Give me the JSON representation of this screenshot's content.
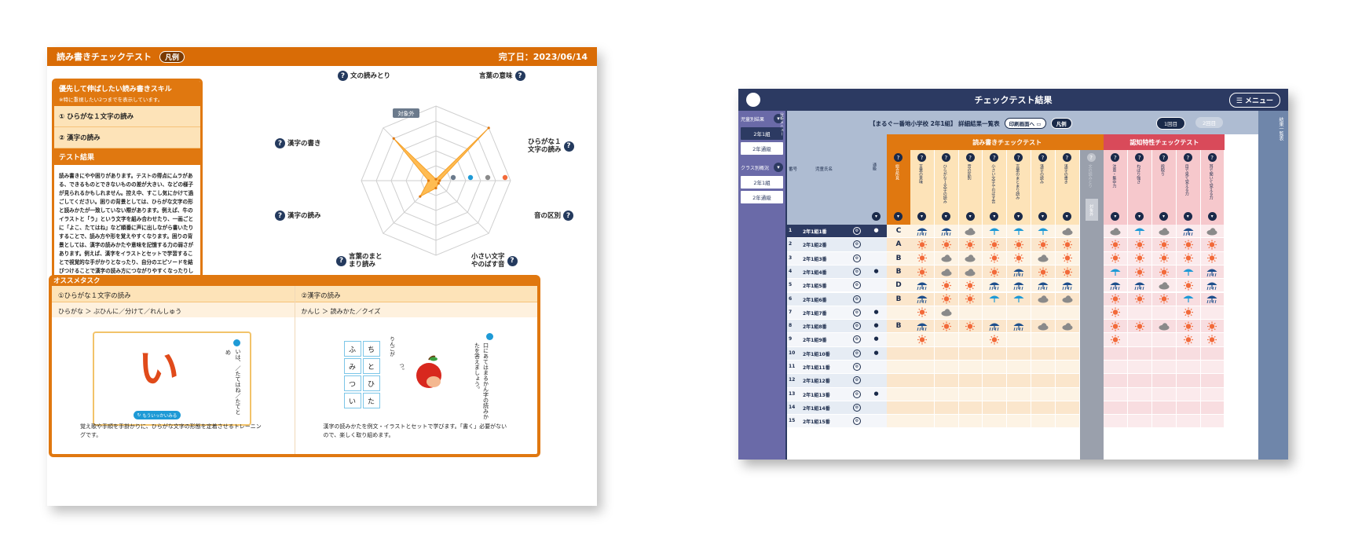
{
  "left": {
    "header": {
      "title": "読み書きチェックテスト",
      "legend_label": "凡例",
      "date": "完了日：2023/06/14"
    },
    "priority": {
      "title": "優先して伸ばしたい読み書きスキル",
      "subtitle": "※特に重視したい2つまでを表示しています。",
      "items": [
        "① ひらがな１文字の読み",
        "② 漢字の読み"
      ]
    },
    "test_result": {
      "title": "テスト結果",
      "body": "読み書きにやや困りがあります。テストの得点にムラがある、できるものとできないものの差が大きい、などの様子が見られるかもしれません。控え中、すこし気にかけて過ごしてください。困りの背景としては、ひらがな文字の形と読みかたが一致していない際があります。例えば、牛のイラストと「う」という文字を組み合わせたり、一画ごとに「よこ、たてはね」など順番に声に出しながら書いたりすることで、読み方や形を覚えやすくなります。困りの背景としては、漢字の読みかたや意味を記憶する力の弱さがあります。例えば、漢字をイラストとセットで学習することで視覚的な手がかりとなったり、自分のエピソードを結びつけることで漢字の読み方につながりやすくなったりします。耳で聞いて覚える力は良好ですが、目で見て覚える力に大きな困りがあることには配慮が必要です。"
    },
    "radar": {
      "axes": [
        "文の読みとり",
        "言葉の意味",
        "ひらがな１文字の読み",
        "音の区別",
        "小さい文字やのばす音",
        "言葉のまとまり読み",
        "漢字の読み",
        "漢字の書き"
      ],
      "labels_lines": [
        [
          "文の読みとり"
        ],
        [
          "言葉の意味"
        ],
        [
          "ひらがな１",
          "文字の読み"
        ],
        [
          "音の区別"
        ],
        [
          "小さい文字",
          "やのばす音"
        ],
        [
          "言葉のまと",
          "まり読み"
        ],
        [
          "漢字の読み"
        ],
        [
          "漢字の書き"
        ]
      ],
      "values": [
        0.0,
        1.0,
        0.05,
        0.05,
        0.1,
        0.3,
        0.1,
        0.8
      ],
      "excluded_label": "対象外",
      "fill": "#ffb84a"
    },
    "tasks": {
      "title": "オススメタスク",
      "columns": [
        {
          "header": "①ひらがな１文字の読み",
          "path": "ひらがな ＞ ぶひんに／分けて／れんしゅう",
          "card_char": "い",
          "card_note": "いは、／たてはね／たてと",
          "card_note_top": "め",
          "button": "もういっかいみる",
          "desc": "覚え歌や手順を手掛かりに、ひらがな文字の形態を定着させるトレーニングです。"
        },
        {
          "header": "②漢字の読み",
          "path": "かんじ ＞ 読みかた／クイズ",
          "grid": [
            "ふ",
            "ち",
            "み",
            "と",
            "つ",
            "ひ",
            "い",
            "た"
          ],
          "hint": "りんごが",
          "hint2": "つ。",
          "vertical": "口にあてはまるかん字の読みかたを答えましょう。",
          "desc": "漢字の読みかたを例文・イラストとセットで学びます。「書く」必要がないので、楽しく取り組めます。"
        }
      ]
    }
  },
  "right": {
    "title": "チェックテスト結果",
    "menu": "☰ メニュー",
    "side": {
      "group1_label": "児童別結果",
      "analysis_label": "分析メニュー",
      "items1": [
        "2年1組",
        "2年通級"
      ],
      "group2_label": "クラス別概況",
      "items2": [
        "2年1組",
        "2年通級"
      ]
    },
    "right_bar_label": "結果一覧表",
    "header_title": "【まるぐー番地小学校 2年1組】 詳細結果一覧表",
    "print_button": "印刷画面へ",
    "legend_button": "凡例",
    "session1": "1回目",
    "session2": "2回目",
    "col_no": "番号",
    "col_name": "児童氏名",
    "col_mark": "通級",
    "col_judge": "総合所見",
    "group_rw": "読み書きチェックテスト",
    "group_cog": "認知特性チェックテスト",
    "rw_cols": [
      "言葉の意味",
      "ひらがな１文字の読み",
      "音の区別",
      "小さい文字やのばす音",
      "言葉のまとまり読み",
      "漢字の読み",
      "漢字の書き"
    ],
    "excluded_col": "文の読みとり",
    "excluded_tag": "対象外",
    "cog_cols": [
      "注意・集中力",
      "ねばり強さ",
      "段取り",
      "目で見て覚える力",
      "耳で聞いて覚える力"
    ],
    "rows": [
      {
        "no": "1",
        "name": "2年1組1番",
        "mark": "●",
        "grade": "C",
        "rw": [
          "ry",
          "ry",
          "c",
          "ra",
          "ra",
          "ra",
          "c"
        ],
        "cog": [
          "c",
          "ra",
          "c",
          "ry",
          "c"
        ]
      },
      {
        "no": "2",
        "name": "2年1組2番",
        "mark": "",
        "grade": "A",
        "rw": [
          "s",
          "s",
          "s",
          "s",
          "s",
          "s",
          "s"
        ],
        "cog": [
          "s",
          "s",
          "s",
          "s",
          "s"
        ]
      },
      {
        "no": "3",
        "name": "2年1組3番",
        "mark": "",
        "grade": "B",
        "rw": [
          "s",
          "c",
          "c",
          "s",
          "s",
          "c",
          "s"
        ],
        "cog": [
          "s",
          "s",
          "s",
          "s",
          "s"
        ]
      },
      {
        "no": "4",
        "name": "2年1組4番",
        "mark": "●",
        "grade": "B",
        "rw": [
          "s",
          "c",
          "c",
          "s",
          "ry",
          "s",
          "s"
        ],
        "cog": [
          "ra",
          "s",
          "s",
          "ra",
          "ry"
        ]
      },
      {
        "no": "5",
        "name": "2年1組5番",
        "mark": "",
        "grade": "D",
        "rw": [
          "ry",
          "s",
          "s",
          "ry",
          "ry",
          "ry",
          "ry"
        ],
        "cog": [
          "ry",
          "ry",
          "c",
          "s",
          "ry"
        ]
      },
      {
        "no": "6",
        "name": "2年1組6番",
        "mark": "",
        "grade": "B",
        "rw": [
          "ry",
          "s",
          "s",
          "ra",
          "ra",
          "c",
          "c"
        ],
        "cog": [
          "s",
          "s",
          "s",
          "ra",
          "ry"
        ]
      },
      {
        "no": "7",
        "name": "2年1組7番",
        "mark": "●",
        "grade": "",
        "rw": [
          "s",
          "c",
          "",
          "",
          "",
          "",
          ""
        ],
        "cog": [
          "s",
          "",
          "",
          "s",
          ""
        ]
      },
      {
        "no": "8",
        "name": "2年1組8番",
        "mark": "●",
        "grade": "B",
        "rw": [
          "ry",
          "s",
          "s",
          "ry",
          "ry",
          "c",
          "c"
        ],
        "cog": [
          "s",
          "s",
          "c",
          "s",
          "s"
        ]
      },
      {
        "no": "9",
        "name": "2年1組9番",
        "mark": "●",
        "grade": "",
        "rw": [
          "s",
          "",
          "",
          "s",
          "",
          "",
          ""
        ],
        "cog": [
          "s",
          "",
          "",
          "s",
          "s"
        ]
      },
      {
        "no": "10",
        "name": "2年1組10番",
        "mark": "●",
        "grade": "",
        "rw": [
          "",
          "",
          "",
          "",
          "",
          "",
          ""
        ],
        "cog": [
          "",
          "",
          "",
          "",
          ""
        ]
      },
      {
        "no": "11",
        "name": "2年1組11番",
        "mark": "",
        "grade": "",
        "rw": [
          "",
          "",
          "",
          "",
          "",
          "",
          ""
        ],
        "cog": [
          "",
          "",
          "",
          "",
          ""
        ]
      },
      {
        "no": "12",
        "name": "2年1組12番",
        "mark": "",
        "grade": "",
        "rw": [
          "",
          "",
          "",
          "",
          "",
          "",
          ""
        ],
        "cog": [
          "",
          "",
          "",
          "",
          ""
        ]
      },
      {
        "no": "13",
        "name": "2年1組13番",
        "mark": "●",
        "grade": "",
        "rw": [
          "",
          "",
          "",
          "",
          "",
          "",
          ""
        ],
        "cog": [
          "",
          "",
          "",
          "",
          ""
        ]
      },
      {
        "no": "14",
        "name": "2年1組14番",
        "mark": "",
        "grade": "",
        "rw": [
          "",
          "",
          "",
          "",
          "",
          "",
          ""
        ],
        "cog": [
          "",
          "",
          "",
          "",
          ""
        ]
      },
      {
        "no": "15",
        "name": "2年1組15番",
        "mark": "",
        "grade": "",
        "rw": [
          "",
          "",
          "",
          "",
          "",
          "",
          ""
        ],
        "cog": [
          "",
          "",
          "",
          "",
          ""
        ]
      }
    ],
    "colors": {
      "navy": "#2c3a62",
      "orange": "#e07810",
      "red": "#d94a5a",
      "sun": "#f26a3a",
      "cloud": "#8a8a8a",
      "rain_light": "#1e9ad6",
      "rain_dark": "#1e4f8c"
    },
    "icon_names": {
      "s": "sun-icon",
      "c": "cloud-icon",
      "ra": "umbrella-icon",
      "ry": "umbrella-heavy-icon"
    }
  }
}
